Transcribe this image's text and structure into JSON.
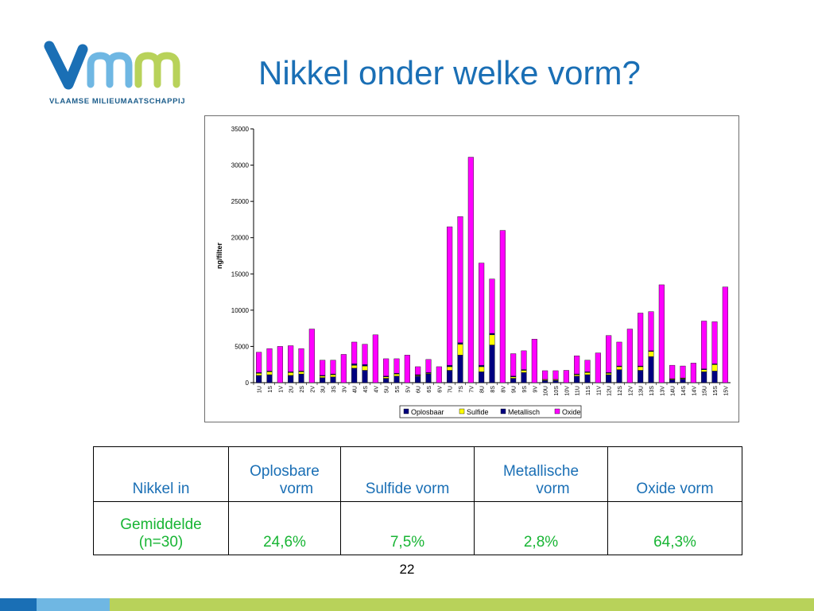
{
  "logo": {
    "wordmark": "Vmm",
    "subtitle": "VLAAMSE MILIEUMAATSCHAPPIJ"
  },
  "title": "Nikkel onder welke vorm?",
  "chart_data": {
    "type": "bar",
    "stacked": true,
    "ylabel": "ng/filter",
    "xlabel": "",
    "ylim": [
      0,
      35000
    ],
    "yticks": [
      0,
      5000,
      10000,
      15000,
      20000,
      25000,
      30000,
      35000
    ],
    "grid": false,
    "legend_position": "bottom",
    "categories": [
      "1U",
      "1S",
      "1V",
      "2U",
      "2S",
      "2V",
      "3U",
      "3S",
      "3V",
      "4U",
      "4S",
      "4V",
      "5U",
      "5S",
      "5V",
      "6U",
      "6S",
      "6V",
      "7U",
      "7S",
      "7V",
      "8U",
      "8S",
      "8V",
      "9U",
      "9S",
      "9V",
      "10U",
      "10S",
      "10V",
      "11U",
      "11S",
      "11V",
      "12U",
      "12S",
      "12V",
      "13U",
      "13S",
      "13V",
      "14U",
      "14S",
      "14V",
      "15U",
      "15S",
      "15V"
    ],
    "series": [
      {
        "name": "Oplosbaar",
        "color": "#00007f",
        "values": [
          1000,
          1100,
          0,
          1000,
          1200,
          0,
          700,
          800,
          0,
          2000,
          1700,
          0,
          600,
          900,
          0,
          900,
          1200,
          0,
          1700,
          3800,
          0,
          1500,
          5200,
          0,
          600,
          1400,
          0,
          300,
          300,
          0,
          900,
          1100,
          0,
          1100,
          1800,
          0,
          1700,
          3600,
          0,
          400,
          500,
          0,
          1500,
          1600,
          0
        ]
      },
      {
        "name": "Sulfide",
        "color": "#ffff00",
        "values": [
          300,
          400,
          0,
          400,
          300,
          0,
          200,
          300,
          0,
          400,
          600,
          0,
          200,
          300,
          0,
          100,
          100,
          0,
          500,
          1500,
          0,
          700,
          1400,
          0,
          200,
          300,
          0,
          100,
          100,
          0,
          200,
          300,
          0,
          200,
          400,
          0,
          500,
          700,
          0,
          100,
          100,
          0,
          300,
          900,
          0
        ]
      },
      {
        "name": "Metallisch",
        "color": "#000080",
        "values": [
          100,
          100,
          0,
          100,
          100,
          0,
          100,
          100,
          0,
          200,
          200,
          0,
          100,
          100,
          0,
          100,
          100,
          0,
          200,
          200,
          0,
          200,
          200,
          0,
          100,
          100,
          0,
          50,
          50,
          0,
          100,
          100,
          0,
          100,
          100,
          0,
          100,
          100,
          0,
          50,
          50,
          0,
          100,
          100,
          0
        ]
      },
      {
        "name": "Oxide",
        "color": "#ff00ff",
        "values": [
          2800,
          3100,
          5000,
          3600,
          3100,
          7400,
          2100,
          1900,
          3900,
          3000,
          2800,
          6600,
          2400,
          2000,
          3800,
          1100,
          1800,
          2200,
          19100,
          17400,
          31100,
          14100,
          7500,
          21000,
          3100,
          2600,
          6000,
          1200,
          1200,
          1700,
          2500,
          1600,
          4100,
          5100,
          3300,
          7400,
          7300,
          5400,
          13500,
          1850,
          1650,
          2700,
          6600,
          5800,
          13200
        ]
      }
    ]
  },
  "table": {
    "header": [
      "Nikkel in",
      "Oplosbare vorm",
      "Sulfide vorm",
      "Metallische vorm",
      "Oxide vorm"
    ],
    "header_lines": [
      [
        "Nikkel in"
      ],
      [
        "Oplosbare",
        "vorm"
      ],
      [
        "Sulfide vorm"
      ],
      [
        "Metallische",
        "vorm"
      ],
      [
        "Oxide vorm"
      ]
    ],
    "row_label_lines": [
      "Gemiddelde",
      "(n=30)"
    ],
    "row_values": [
      "24,6%",
      "7,5%",
      "2,8%",
      "64,3%"
    ]
  },
  "page_number": "22",
  "colors": {
    "title": "#1a6fb5",
    "table_header": "#1a6fb5",
    "table_values": "#18b534",
    "footer_blue": "#1a6fb5",
    "footer_lightblue": "#6fb7e3",
    "footer_green": "#b8d25a"
  }
}
